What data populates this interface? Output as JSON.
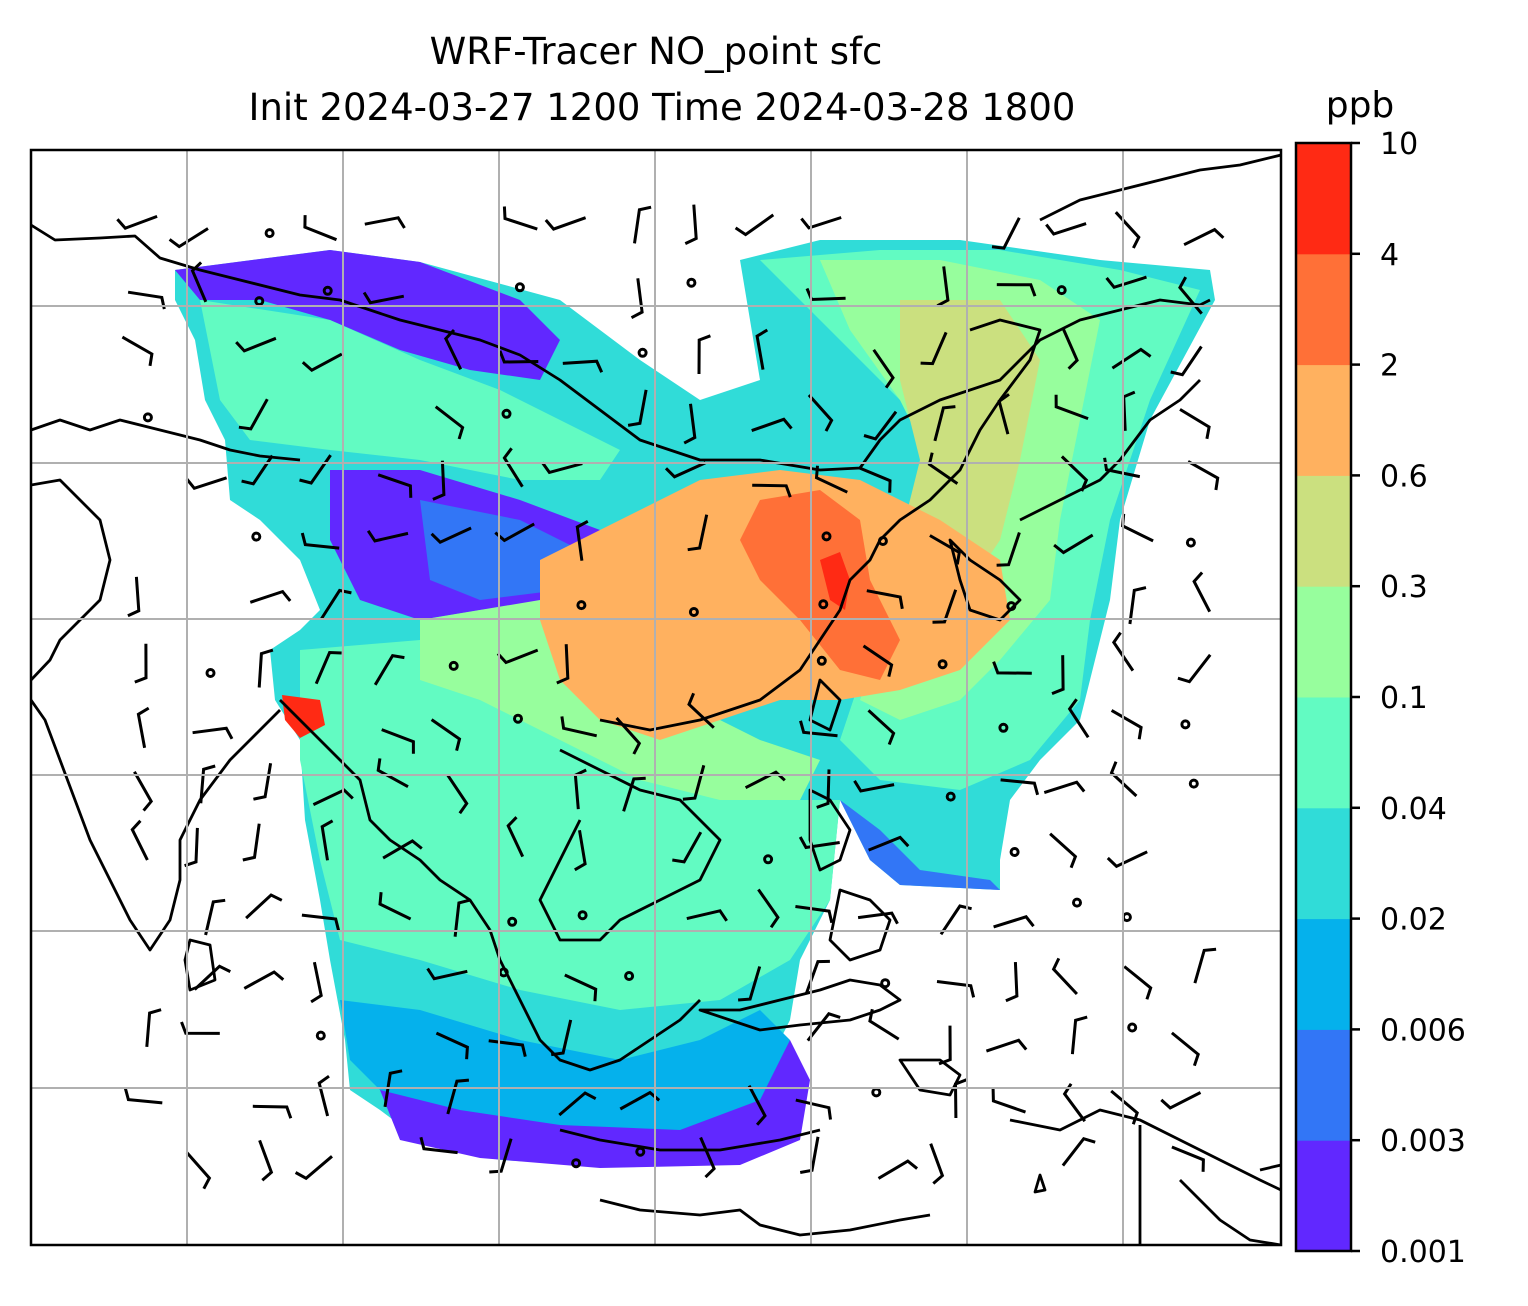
{
  "chart_data": {
    "type": "heatmap",
    "title": "WRF-Tracer NO_point sfc",
    "subtitle": "Init 2024-03-27 1200 Time 2024-03-28 1800",
    "colorbar": {
      "unit": "ppb",
      "levels": [
        "0.001",
        "0.003",
        "0.006",
        "0.02",
        "0.04",
        "0.1",
        "0.3",
        "0.6",
        "2",
        "4",
        "10"
      ],
      "colors": [
        "#6128ff",
        "#3276f6",
        "#05b1ec",
        "#30dcd8",
        "#62fbc2",
        "#97fe9d",
        "#cbe07f",
        "#ffb15f",
        "#ff7037",
        "#ff2a14"
      ]
    },
    "grid": true,
    "map": "map projection with coastlines, country borders and surface wind barbs"
  }
}
